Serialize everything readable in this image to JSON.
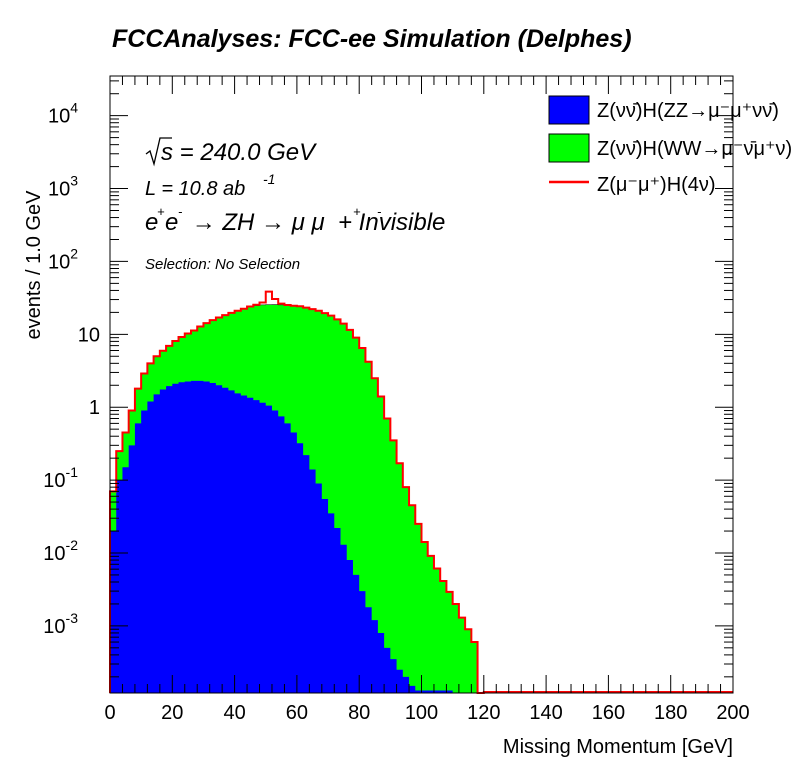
{
  "chart_data": {
    "type": "area",
    "title": "FCCAnalyses: FCC-ee Simulation (Delphes)",
    "xlabel": "Missing Momentum [GeV]",
    "ylabel": "events / 1.0 GeV",
    "xlim": [
      0,
      200
    ],
    "ylim": [
      0.00012,
      35000
    ],
    "yscale": "log",
    "stacked": true,
    "grid": false,
    "legend_position": "top-right",
    "x_ticks": [
      "0",
      "20",
      "40",
      "60",
      "80",
      "100",
      "120",
      "140",
      "160",
      "180",
      "200"
    ],
    "y_ticks": [
      {
        "base": "10",
        "exp": "-3",
        "value": 0.001
      },
      {
        "base": "10",
        "exp": "-2",
        "value": 0.01
      },
      {
        "base": "10",
        "exp": "-1",
        "value": 0.1
      },
      {
        "base": "1",
        "exp": "",
        "value": 1
      },
      {
        "base": "10",
        "exp": "",
        "value": 10
      },
      {
        "base": "10",
        "exp": "2",
        "value": 100
      },
      {
        "base": "10",
        "exp": "3",
        "value": 1000
      },
      {
        "base": "10",
        "exp": "4",
        "value": 10000
      }
    ],
    "annotations": {
      "sqrt_s": "s = 240.0 GeV",
      "lumi": "L = 10.8 ab",
      "lumi_exp": "-1",
      "process": "e e  → ZH → μ μ  + Invisible",
      "selection": "Selection: No Selection"
    },
    "x": [
      0,
      2,
      4,
      6,
      8,
      10,
      12,
      14,
      16,
      18,
      20,
      22,
      24,
      26,
      28,
      30,
      32,
      34,
      36,
      38,
      40,
      42,
      44,
      46,
      48,
      50,
      52,
      54,
      56,
      58,
      60,
      62,
      64,
      66,
      68,
      70,
      72,
      74,
      76,
      78,
      80,
      82,
      84,
      86,
      88,
      90,
      92,
      94,
      96,
      98,
      100,
      102,
      104,
      106,
      108,
      110,
      112,
      114,
      116,
      118
    ],
    "series": [
      {
        "name": "Z(νν̄)H(ZZ→μ⁻μ⁺νν̄)",
        "color": "#0000ff",
        "values": [
          0.02,
          0.1,
          0.15,
          0.3,
          0.6,
          0.9,
          1.2,
          1.5,
          1.75,
          1.95,
          2.1,
          2.2,
          2.25,
          2.3,
          2.3,
          2.25,
          2.15,
          2.0,
          1.85,
          1.7,
          1.55,
          1.45,
          1.35,
          1.25,
          1.15,
          1.05,
          0.9,
          0.75,
          0.6,
          0.45,
          0.32,
          0.22,
          0.14,
          0.09,
          0.055,
          0.035,
          0.022,
          0.013,
          0.008,
          0.005,
          0.003,
          0.0018,
          0.0012,
          0.0008,
          0.0005,
          0.00035,
          0.00025,
          0.0002,
          0.00015,
          0.00013,
          0.00013,
          0.00013,
          0.00013,
          0.00013,
          0.00013,
          0,
          0,
          0,
          0,
          0
        ]
      },
      {
        "name": "Z(νν̄)H(WW→μ⁻ν̄μ⁺ν)",
        "color": "#00ff00",
        "values": [
          0.05,
          0.15,
          0.3,
          0.6,
          1.2,
          2.0,
          2.8,
          3.5,
          4.2,
          5.0,
          6.0,
          7.0,
          8.0,
          9.0,
          10.5,
          12,
          13.5,
          15,
          16.5,
          18,
          19.5,
          21,
          22.5,
          23.5,
          24.2,
          24.5,
          24.6,
          24.6,
          24.4,
          24.2,
          24,
          23,
          22,
          21,
          19.5,
          18,
          16,
          14,
          11.5,
          9,
          6.5,
          4.2,
          2.5,
          1.4,
          0.7,
          0.35,
          0.17,
          0.08,
          0.045,
          0.025,
          0.014,
          0.009,
          0.006,
          0.004,
          0.0028,
          0.002,
          0.0013,
          0.0009,
          0.0006,
          0
        ]
      },
      {
        "name": "Z(μ⁻μ⁺)H(4ν)",
        "color": "#ff0000",
        "x": [
          45,
          46,
          47,
          48,
          49,
          50,
          51,
          52,
          53,
          54,
          55,
          56,
          57
        ],
        "values": [
          0.2,
          0.4,
          0.7,
          1.0,
          2.0,
          5.0,
          13.0,
          5.0,
          2.0,
          1.0,
          0.6,
          0.3,
          0.15
        ]
      }
    ]
  }
}
